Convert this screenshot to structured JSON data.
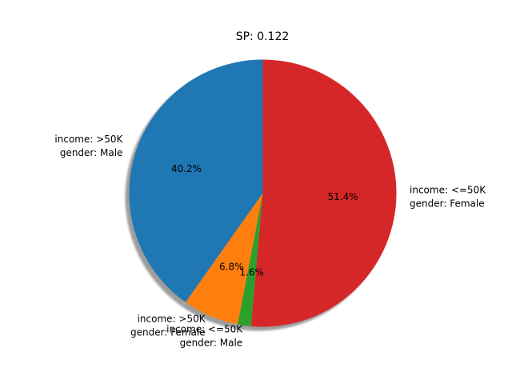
{
  "chart_data": {
    "type": "pie",
    "title": "SP: 0.122",
    "slices": [
      {
        "label_line1": "income: >50K",
        "label_line2": "gender: Male",
        "value": 40.2,
        "pct_label": "40.2%",
        "color": "#1f77b4"
      },
      {
        "label_line1": "income: >50K",
        "label_line2": "gender: Female",
        "value": 6.8,
        "pct_label": "6.8%",
        "color": "#ff7f0e"
      },
      {
        "label_line1": "income: <=50K",
        "label_line2": "gender: Male",
        "value": 1.6,
        "pct_label": "1.6%",
        "color": "#2ca02c"
      },
      {
        "label_line1": "income: <=50K",
        "label_line2": "gender: Female",
        "value": 51.4,
        "pct_label": "51.4%",
        "color": "#d62728"
      }
    ],
    "start_angle_deg": 90,
    "direction": "counterclockwise",
    "shadow": true
  }
}
